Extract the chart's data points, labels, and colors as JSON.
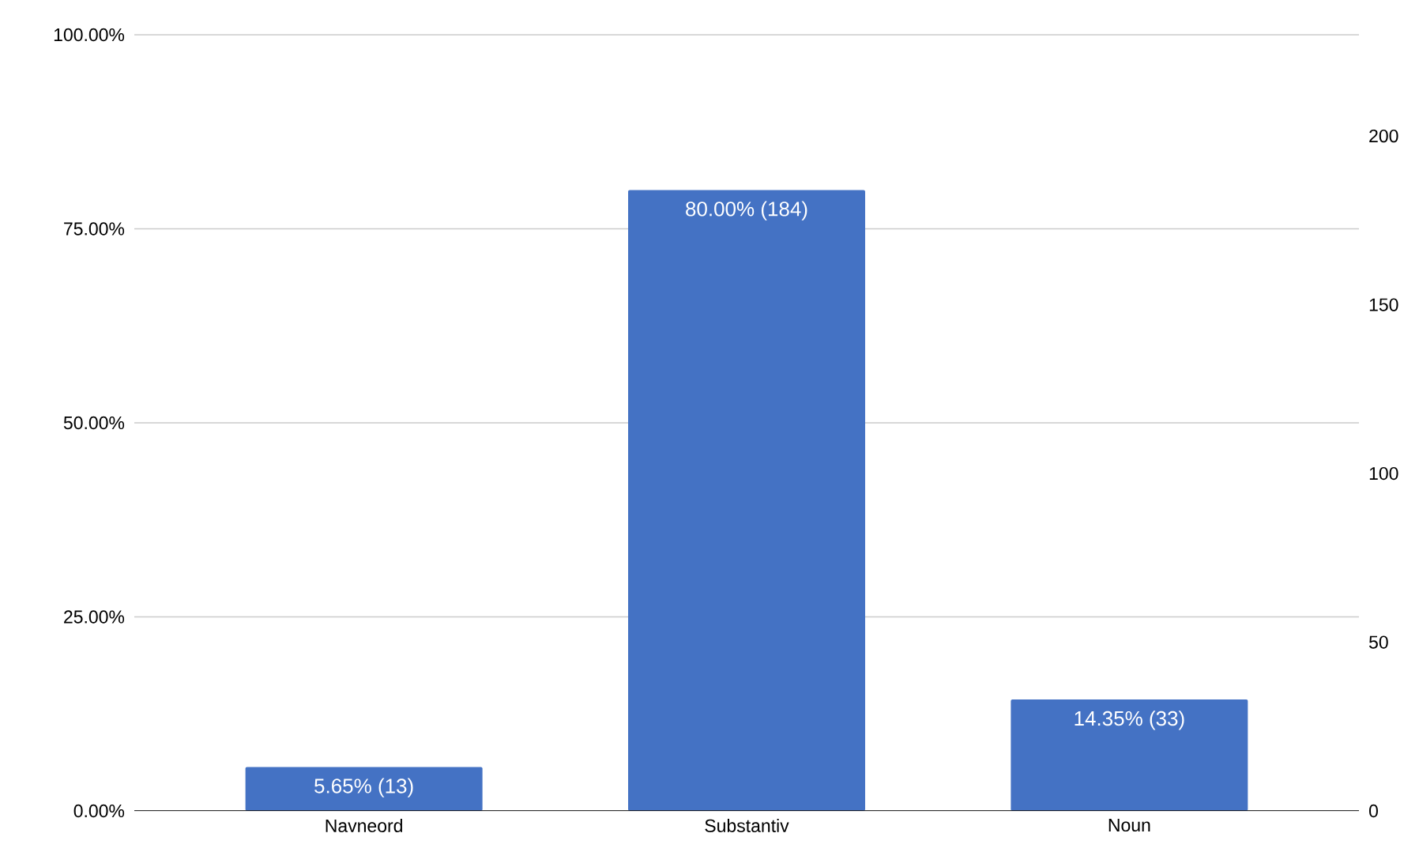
{
  "chart_data": {
    "type": "bar",
    "categories": [
      "Navneord",
      "Substantiv",
      "Noun"
    ],
    "series": [
      {
        "color": "#4472c4",
        "values": [
          5.65,
          80.0,
          14.35
        ]
      }
    ],
    "value_labels": [
      "5.65% (13)",
      "80.00% (184)",
      "14.35% (33)"
    ],
    "ylim": [
      0,
      100
    ],
    "yticks": [
      {
        "value": 0,
        "label": "0.00%"
      },
      {
        "value": 25,
        "label": "25.00%"
      },
      {
        "value": 50,
        "label": "50.00%"
      },
      {
        "value": 75,
        "label": "75.00%"
      },
      {
        "value": 100,
        "label": "100.00%"
      }
    ],
    "y2lim": [
      0,
      230
    ],
    "y2ticks": [
      0,
      50,
      100,
      150,
      200
    ],
    "grid": "y"
  }
}
